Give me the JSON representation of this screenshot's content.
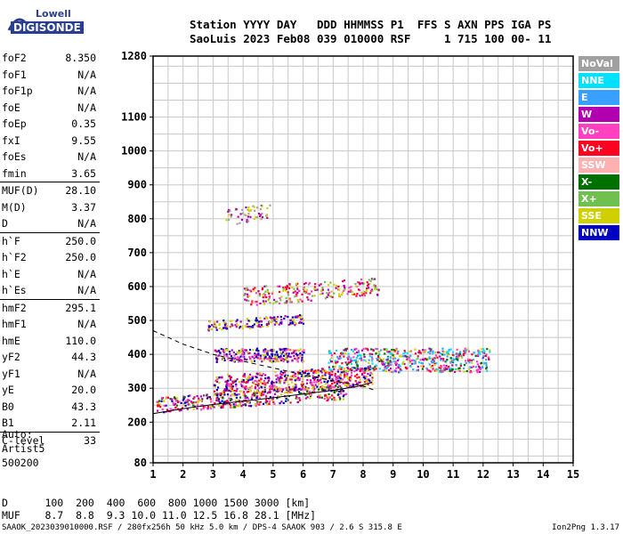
{
  "logo": {
    "line1": "Lowell",
    "line2": "DIGISONDE"
  },
  "header": {
    "line1": "Station YYYY DAY   DDD HHMMSS P1  FFS S AXN PPS IGA PS",
    "line2": "SaoLuis 2023 Feb08 039 010000 RSF     1 715 100 00- 11"
  },
  "params": [
    {
      "k": "foF2",
      "v": "8.350"
    },
    {
      "k": "foF1",
      "v": "N/A"
    },
    {
      "k": "foF1p",
      "v": "N/A"
    },
    {
      "k": "foE",
      "v": "N/A"
    },
    {
      "k": "foEp",
      "v": "0.35"
    },
    {
      "k": "fxI",
      "v": "9.55"
    },
    {
      "k": "foEs",
      "v": "N/A"
    },
    {
      "k": "fmin",
      "v": "3.65"
    },
    {
      "k": "MUF(D)",
      "v": "28.10",
      "sep": true
    },
    {
      "k": "M(D)",
      "v": "3.37"
    },
    {
      "k": "D",
      "v": "N/A"
    },
    {
      "k": "h`F",
      "v": "250.0",
      "sep": true
    },
    {
      "k": "h`F2",
      "v": "250.0"
    },
    {
      "k": "h`E",
      "v": "N/A"
    },
    {
      "k": "h`Es",
      "v": "N/A"
    },
    {
      "k": "hmF2",
      "v": "295.1",
      "sep": true
    },
    {
      "k": "hmF1",
      "v": "N/A"
    },
    {
      "k": "hmE",
      "v": "110.0"
    },
    {
      "k": "yF2",
      "v": "44.3"
    },
    {
      "k": "yF1",
      "v": "N/A"
    },
    {
      "k": "yE",
      "v": "20.0"
    },
    {
      "k": "B0",
      "v": "43.3"
    },
    {
      "k": "B1",
      "v": "2.11"
    },
    {
      "k": "C-level",
      "v": "33",
      "sep": true
    }
  ],
  "auto": {
    "line1": "Auto:",
    "line2": "Artist5",
    "line3": "500200"
  },
  "legend": [
    {
      "label": "NoVal",
      "bg": "#a0a0a0",
      "fg": "#ffffff"
    },
    {
      "label": "NNE",
      "bg": "#00e0ff",
      "fg": "#ffffff"
    },
    {
      "label": "E",
      "bg": "#3aa0ff",
      "fg": "#ffffff"
    },
    {
      "label": "W",
      "bg": "#b000b0",
      "fg": "#ffffff"
    },
    {
      "label": "Vo-",
      "bg": "#ff40c0",
      "fg": "#ffffff"
    },
    {
      "label": "Vo+",
      "bg": "#ff0020",
      "fg": "#ffffff"
    },
    {
      "label": "SSW",
      "bg": "#ffb0b0",
      "fg": "#ffffff"
    },
    {
      "label": "X-",
      "bg": "#007000",
      "fg": "#ffffff"
    },
    {
      "label": "X+",
      "bg": "#70c050",
      "fg": "#ffffff"
    },
    {
      "label": "SSE",
      "bg": "#d0d000",
      "fg": "#ffffff"
    },
    {
      "label": "NNW",
      "bg": "#0000c0",
      "fg": "#ffffff"
    }
  ],
  "footer": {
    "line1": "D      100  200  400  600  800 1000 1500 3000 [km]",
    "line2": "MUF    8.7  8.8  9.3 10.0 11.0 12.5 16.8 28.1 [MHz]",
    "line3": "SAAOK_2023039010000.RSF / 280fx256h 50 kHz 5.0 km / DPS-4 SAAOK 903 / 2.6 S 315.8 E",
    "line4": "Ion2Png 1.3.17"
  },
  "chart_data": {
    "type": "scatter",
    "xlim": [
      1,
      15
    ],
    "ylim": [
      80,
      1280
    ],
    "x_ticks": [
      1,
      2,
      3,
      4,
      5,
      6,
      7,
      8,
      9,
      10,
      11,
      12,
      13,
      14,
      15
    ],
    "y_ticks": [
      80,
      200,
      300,
      400,
      500,
      600,
      700,
      800,
      900,
      1000,
      1100,
      1280
    ],
    "grid": true,
    "clusters": [
      {
        "name": "E",
        "x0": 1.1,
        "x1": 7.5,
        "y0": 230,
        "y1": 275,
        "colors": [
          "#0000c0",
          "#b000b0",
          "#ff40c0",
          "#007000",
          "#d0d000",
          "#ff0020"
        ],
        "n": 420,
        "slope": 40
      },
      {
        "name": "F-lower",
        "x0": 3,
        "x1": 8.3,
        "y0": 280,
        "y1": 340,
        "colors": [
          "#b000b0",
          "#0000c0",
          "#ff40c0",
          "#ff0020",
          "#d0d000"
        ],
        "n": 520,
        "slope": 30
      },
      {
        "name": "F-mid",
        "x0": 3,
        "x1": 6,
        "y0": 380,
        "y1": 420,
        "colors": [
          "#b000b0",
          "#ff40c0",
          "#d0d000",
          "#0000c0"
        ],
        "n": 260,
        "slope": 0
      },
      {
        "name": "F2-trace",
        "x0": 6.8,
        "x1": 12.2,
        "y0": 350,
        "y1": 420,
        "colors": [
          "#ff0020",
          "#b000b0",
          "#00e0ff",
          "#3aa0ff",
          "#d0d000",
          "#007000",
          "#ff40c0"
        ],
        "n": 560,
        "slope": 0
      },
      {
        "name": "second-hop",
        "x0": 2.8,
        "x1": 6,
        "y0": 470,
        "y1": 500,
        "colors": [
          "#b000b0",
          "#d0d000",
          "#0000c0"
        ],
        "n": 150,
        "slope": 20
      },
      {
        "name": "second-hop-upper",
        "x0": 4,
        "x1": 8.5,
        "y0": 545,
        "y1": 600,
        "colors": [
          "#d0d000",
          "#b000b0",
          "#ff0020",
          "#70c050",
          "#ff40c0"
        ],
        "n": 240,
        "slope": 30
      },
      {
        "name": "third-hop",
        "x0": 3.4,
        "x1": 4.9,
        "y0": 780,
        "y1": 830,
        "colors": [
          "#d0d000",
          "#b000b0",
          "#a0a0a0"
        ],
        "n": 60,
        "slope": 25
      }
    ],
    "lines": [
      {
        "name": "virtual-height-solid",
        "style": "solid",
        "points": [
          [
            1,
            225
          ],
          [
            2,
            240
          ],
          [
            3,
            252
          ],
          [
            4,
            262
          ],
          [
            5,
            272
          ],
          [
            6,
            283
          ],
          [
            7,
            294
          ],
          [
            7.8,
            305
          ],
          [
            8.3,
            318
          ]
        ]
      },
      {
        "name": "profile-dashed",
        "style": "dashed",
        "points": [
          [
            1,
            470
          ],
          [
            2,
            430
          ],
          [
            3,
            400
          ],
          [
            4,
            380
          ],
          [
            5,
            360
          ],
          [
            6,
            340
          ],
          [
            7,
            322
          ],
          [
            8,
            306
          ],
          [
            8.35,
            295
          ]
        ]
      }
    ]
  }
}
